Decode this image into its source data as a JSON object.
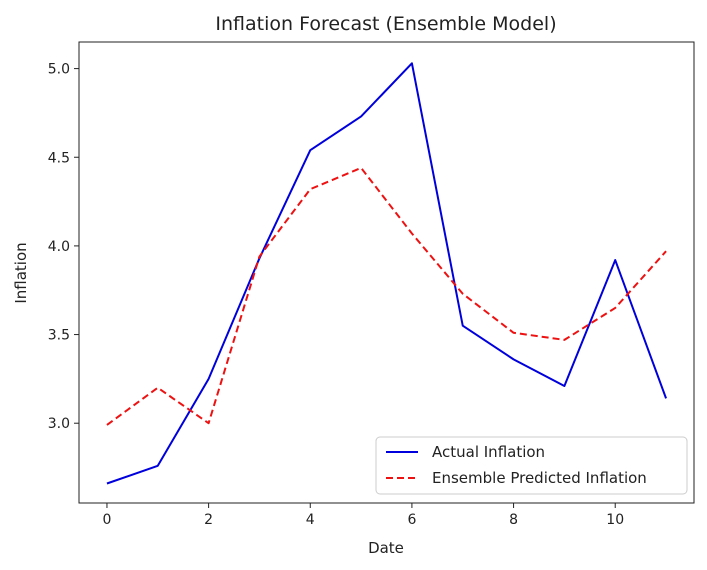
{
  "chart_data": {
    "type": "line",
    "title": "Inflation Forecast (Ensemble Model)",
    "xlabel": "Date",
    "ylabel": "Inflation",
    "x": [
      0,
      1,
      2,
      3,
      4,
      5,
      6,
      7,
      8,
      9,
      10,
      11
    ],
    "xlim": [
      -0.55,
      11.55
    ],
    "ylim": [
      2.55,
      5.15
    ],
    "xticks": [
      0,
      2,
      4,
      6,
      8,
      10
    ],
    "yticks": [
      3.0,
      3.5,
      4.0,
      4.5,
      5.0
    ],
    "xtick_labels": [
      "0",
      "2",
      "4",
      "6",
      "8",
      "10"
    ],
    "ytick_labels": [
      "3.0",
      "3.5",
      "4.0",
      "4.5",
      "5.0"
    ],
    "grid": false,
    "legend": "lower-right",
    "series": [
      {
        "name": "Actual Inflation",
        "color": "#0000dd",
        "style": "solid",
        "values": [
          2.66,
          2.76,
          3.25,
          3.93,
          4.54,
          4.73,
          5.03,
          3.55,
          3.36,
          3.21,
          3.92,
          3.14
        ]
      },
      {
        "name": "Ensemble Predicted Inflation",
        "color": "#ee1111",
        "style": "dashed",
        "values": [
          2.99,
          3.2,
          3.0,
          3.94,
          4.32,
          4.44,
          4.07,
          3.73,
          3.51,
          3.47,
          3.65,
          3.97
        ]
      }
    ]
  }
}
